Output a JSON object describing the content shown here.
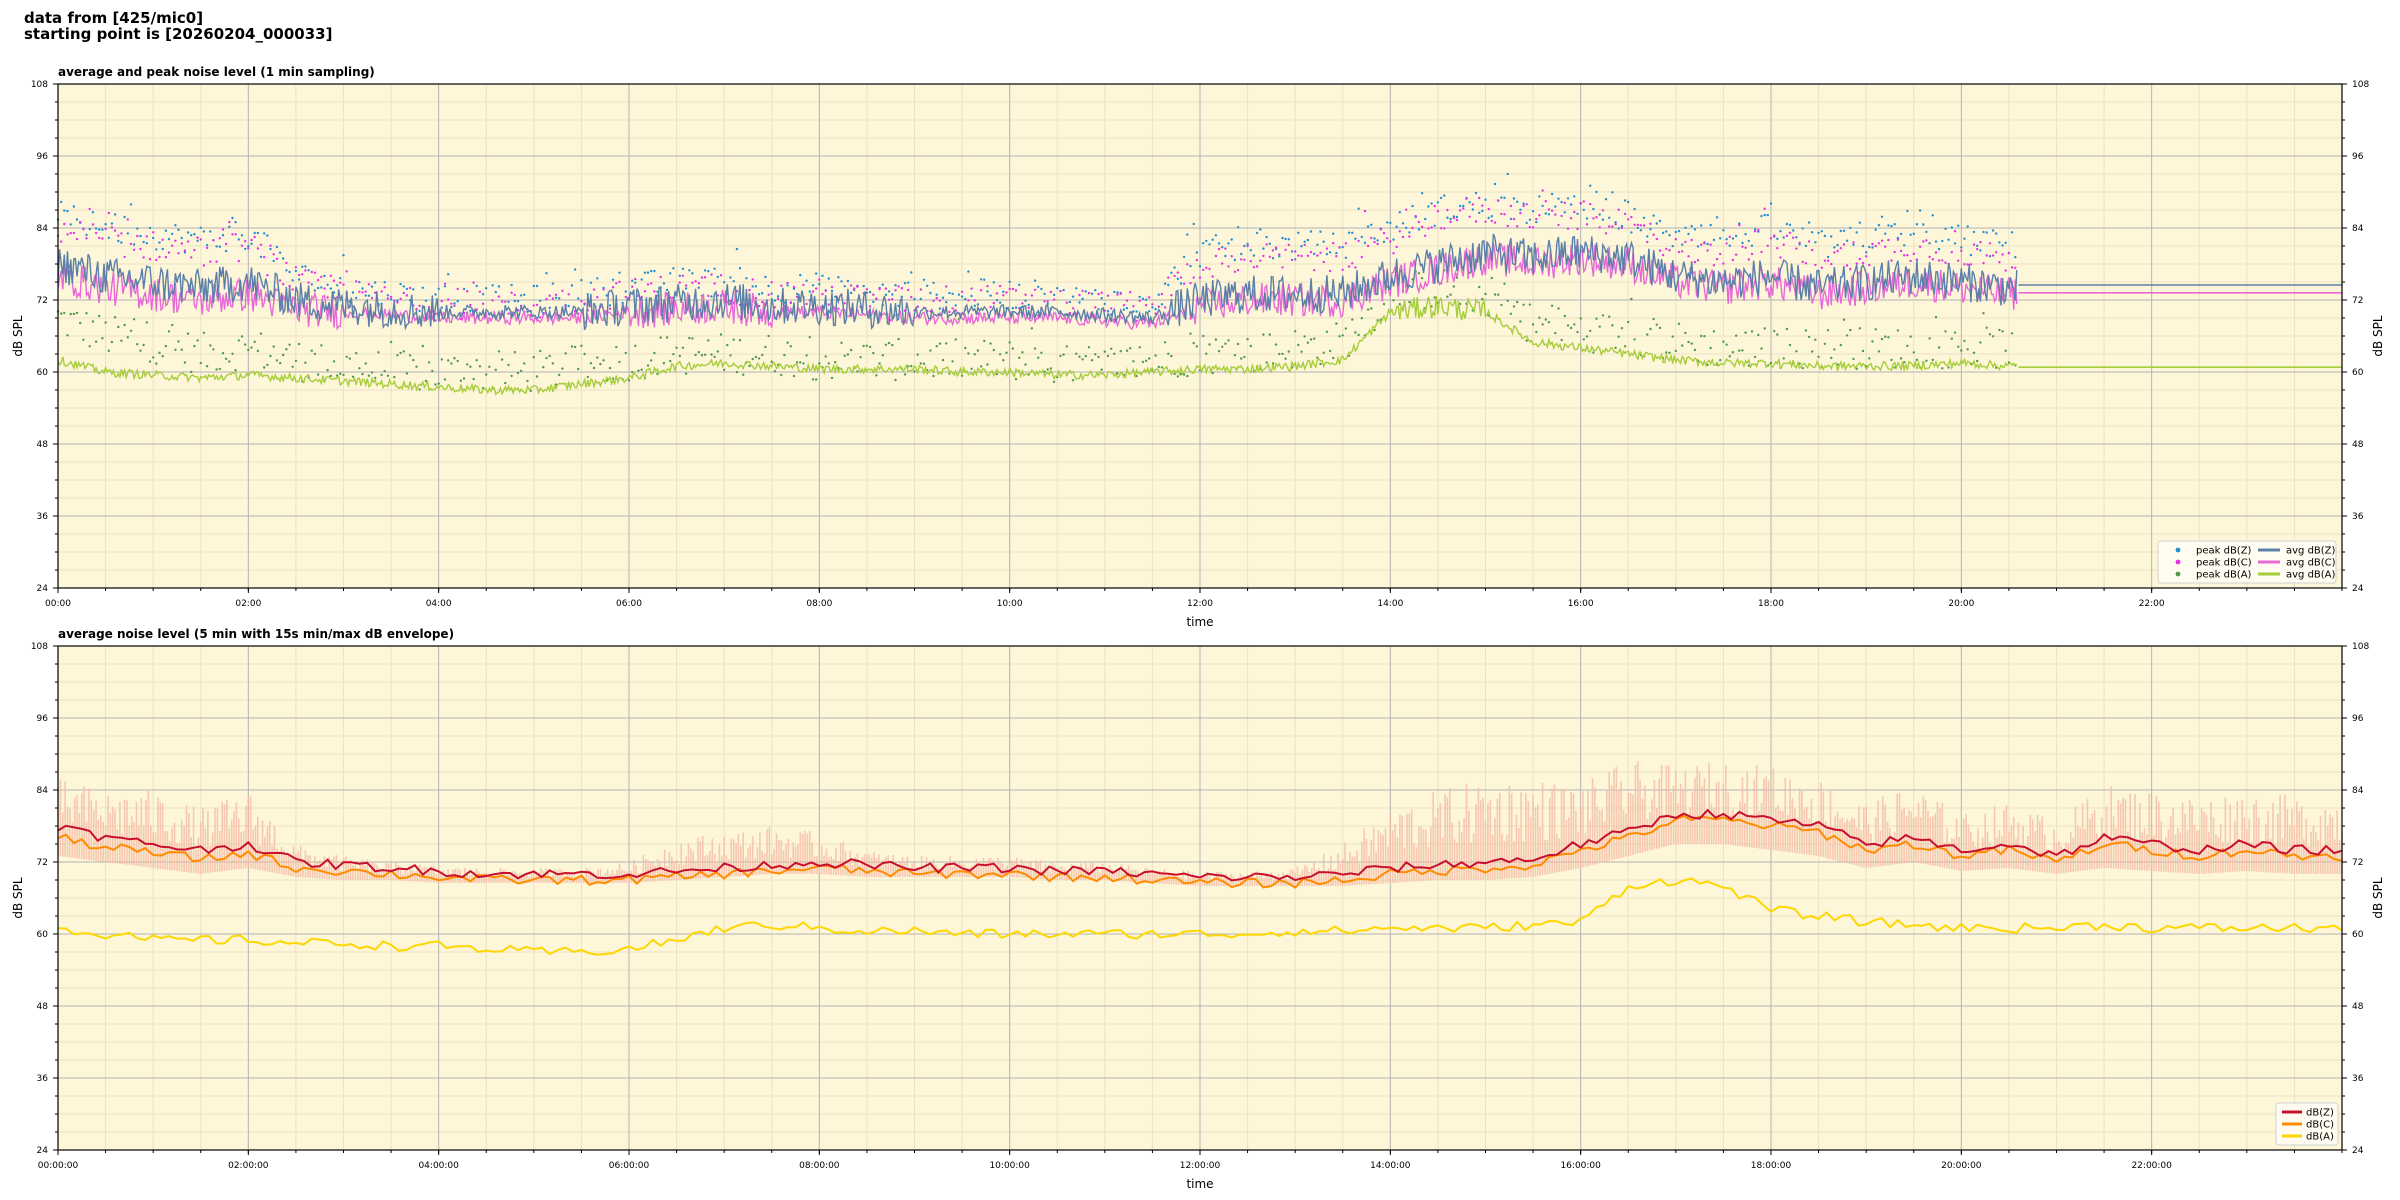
{
  "header": {
    "line1": "data from [425/mic0]",
    "line2": "starting point is [20260204_000033]"
  },
  "colors": {
    "plot_bg": "#fdf6d8",
    "grid_major": "#b3b3b3",
    "grid_minor": "#ece2bf",
    "peak_z": "#1f8fd6",
    "peak_c": "#e830e8",
    "peak_a": "#4f9a48",
    "avg_z": "#5b7fa8",
    "avg_c": "#e868d8",
    "avg_a": "#a6cd3a",
    "env_fill": "#f4b9a4",
    "line_z": "#c8102e",
    "line_c": "#ff8c00",
    "line_a": "#ffd700"
  },
  "chart_data": [
    {
      "type": "line",
      "title": "average and peak noise level (1 min sampling)",
      "xlabel": "time",
      "ylabel": "dB SPL",
      "xlim_hours": [
        0,
        24
      ],
      "ylim": [
        24,
        108
      ],
      "yticks": [
        24,
        36,
        48,
        60,
        72,
        84,
        96,
        108
      ],
      "xticks": [
        "00:00",
        "02:00",
        "04:00",
        "06:00",
        "08:00",
        "10:00",
        "12:00",
        "14:00",
        "16:00",
        "18:00",
        "20:00",
        "22:00"
      ],
      "grid": true,
      "legend_position": "lower-right",
      "legend": [
        "peak dB(Z)",
        "peak dB(C)",
        "peak dB(A)",
        "avg dB(Z)",
        "avg dB(C)",
        "avg dB(A)"
      ],
      "x_hours": [
        0,
        0.5,
        1,
        1.5,
        2,
        2.5,
        3,
        3.5,
        4,
        4.5,
        5,
        5.5,
        6,
        6.5,
        7,
        7.5,
        8,
        8.5,
        9,
        9.5,
        10,
        10.5,
        11,
        11.5,
        12,
        12.5,
        13,
        13.5,
        14,
        14.5,
        15,
        15.5,
        16,
        16.5,
        17,
        17.5,
        18,
        18.5,
        19,
        19.5,
        20,
        20.5
      ],
      "series": [
        {
          "name": "avg dB(Z)",
          "values": [
            78,
            76,
            75,
            74,
            75,
            72,
            71,
            70.5,
            70,
            70,
            70,
            70,
            71,
            71.5,
            72,
            71,
            71,
            70.5,
            70,
            70,
            70,
            70,
            69.5,
            69,
            72,
            73,
            73,
            73,
            76,
            78,
            80,
            79,
            80,
            79,
            76,
            75,
            76,
            74,
            75,
            76,
            75,
            74
          ]
        },
        {
          "name": "avg dB(C)",
          "values": [
            76,
            74,
            73,
            72,
            73,
            70.5,
            70,
            69.5,
            69,
            69,
            69,
            69,
            70,
            70.5,
            71,
            70,
            70,
            69.5,
            69,
            69,
            69,
            69,
            68.5,
            68,
            71,
            72,
            72,
            72,
            75,
            77,
            79,
            78,
            79,
            78,
            75,
            74,
            75,
            73,
            74,
            75,
            74,
            73
          ]
        },
        {
          "name": "avg dB(A)",
          "values": [
            62,
            60,
            59.5,
            59,
            59.5,
            59,
            58.5,
            58,
            57.5,
            57,
            57,
            58,
            59,
            61,
            61.5,
            61,
            60.5,
            60.5,
            60.5,
            60,
            60,
            59.5,
            59.5,
            60,
            60.5,
            60.5,
            61,
            62,
            70,
            71,
            70,
            65,
            64,
            63,
            62,
            61.5,
            61.5,
            61,
            61,
            61,
            61.5,
            61
          ]
        },
        {
          "name": "peak dB(Z)",
          "values": [
            86,
            84,
            83,
            82,
            83,
            76,
            74,
            73,
            72,
            72,
            72,
            73,
            74,
            75,
            75,
            74,
            74,
            73,
            73,
            73,
            73,
            72,
            72,
            72,
            80,
            81,
            81,
            81,
            84,
            87,
            88,
            87,
            87,
            86,
            82,
            82,
            84,
            81,
            82,
            83,
            82,
            81
          ]
        },
        {
          "name": "peak dB(C)",
          "values": [
            84,
            82,
            81,
            80,
            81,
            75,
            73,
            72,
            71,
            71,
            71,
            72,
            73,
            74,
            74,
            73,
            73,
            72,
            72,
            72,
            72,
            71,
            71,
            71,
            78,
            79,
            79,
            79,
            82,
            86,
            87,
            86,
            86,
            85,
            80,
            80,
            82,
            79,
            80,
            81,
            80,
            79
          ]
        },
        {
          "name": "peak dB(A)",
          "values": [
            69,
            66,
            65,
            63,
            64,
            62,
            61,
            60,
            60,
            60,
            60,
            61,
            62,
            63,
            63,
            63,
            62,
            62,
            62,
            62,
            62,
            61,
            61,
            62,
            63,
            63,
            64,
            65,
            73,
            74,
            73,
            68,
            67,
            66,
            65,
            64,
            64,
            64,
            64,
            64,
            64,
            64
          ]
        }
      ],
      "tail": {
        "x_hours": [
          20.6,
          24
        ],
        "avg_z": 74.5,
        "avg_c": 73.2,
        "avg_a": 60.8
      }
    },
    {
      "type": "line",
      "title": "average noise level (5 min with 15s min/max dB envelope)",
      "xlabel": "time",
      "ylabel": "dB SPL",
      "xlim_hours": [
        0,
        24
      ],
      "ylim": [
        24,
        108
      ],
      "yticks": [
        24,
        36,
        48,
        60,
        72,
        84,
        96,
        108
      ],
      "xticks": [
        "00:00:00",
        "02:00:00",
        "04:00:00",
        "06:00:00",
        "08:00:00",
        "10:00:00",
        "12:00:00",
        "14:00:00",
        "16:00:00",
        "18:00:00",
        "20:00:00",
        "22:00:00"
      ],
      "grid": true,
      "legend_position": "lower-right",
      "legend": [
        "dB(Z)",
        "dB(C)",
        "dB(A)"
      ],
      "x_hours": [
        0,
        0.5,
        1,
        1.5,
        2,
        2.5,
        3,
        3.5,
        4,
        4.5,
        5,
        5.5,
        6,
        6.5,
        7,
        7.5,
        8,
        8.5,
        9,
        9.5,
        10,
        10.5,
        11,
        11.5,
        12,
        12.5,
        13,
        13.5,
        14,
        14.5,
        15,
        15.5,
        16,
        16.5,
        17,
        17.5,
        18,
        18.5,
        19,
        19.5,
        20,
        20.5,
        21,
        21.5,
        22,
        22.5,
        23,
        23.5,
        24
      ],
      "series": [
        {
          "name": "dB(Z)",
          "values": [
            78,
            76,
            75,
            74,
            75,
            72,
            71.5,
            71,
            70.5,
            70,
            70,
            70,
            70,
            70.5,
            71,
            71.5,
            72,
            71.5,
            71,
            71,
            71,
            70.5,
            70.5,
            70,
            69.5,
            69.5,
            69.5,
            70,
            71,
            71.5,
            72,
            72.5,
            75,
            77,
            80,
            80,
            79,
            78,
            75,
            76,
            74,
            75,
            73,
            76,
            75,
            74,
            75,
            74,
            74
          ]
        },
        {
          "name": "dB(C)",
          "values": [
            76,
            74.5,
            73.5,
            72.5,
            73.5,
            71,
            70.5,
            70,
            69.5,
            69,
            69,
            69,
            69,
            69.5,
            70,
            70.5,
            71,
            70.5,
            70,
            70,
            70,
            69.5,
            69.5,
            69,
            68.5,
            68.5,
            68.5,
            69,
            70,
            70.5,
            71,
            71.5,
            74,
            76,
            79,
            79,
            78,
            77,
            74,
            75,
            73,
            74,
            72,
            75,
            74,
            73,
            74,
            73,
            73
          ]
        },
        {
          "name": "dB(A)",
          "values": [
            61,
            60,
            59,
            59,
            59,
            58.5,
            58.5,
            58,
            58,
            57.5,
            57,
            57,
            57.5,
            59,
            61,
            61.5,
            61,
            60.5,
            60.5,
            60,
            60,
            60,
            60,
            60,
            60,
            60,
            60.5,
            60.5,
            61,
            61,
            61,
            61.5,
            62,
            68,
            69,
            68,
            64,
            63,
            62,
            61.5,
            61,
            61,
            61,
            61.5,
            61,
            61,
            61,
            61,
            61
          ]
        }
      ],
      "envelope_max": [
        86,
        84,
        84,
        81,
        84,
        75,
        73,
        72,
        71.5,
        71,
        71,
        71,
        72,
        76,
        77,
        78,
        77,
        74,
        73,
        73,
        73,
        72,
        72,
        71,
        70.5,
        70.5,
        71,
        75,
        81,
        84,
        86,
        86,
        85,
        89,
        88,
        89,
        88,
        86,
        82,
        85,
        80,
        82,
        79,
        85,
        84,
        83,
        84,
        83,
        83
      ],
      "envelope_min": [
        73,
        72,
        71,
        70,
        71,
        69.5,
        69,
        69,
        68.5,
        68.5,
        68.5,
        68.5,
        68.5,
        69,
        69.5,
        70,
        70,
        69.5,
        69.5,
        69.5,
        69.5,
        69,
        69,
        68.5,
        68,
        68,
        68,
        68,
        68.5,
        69,
        69,
        69.5,
        71,
        73,
        75,
        75,
        74,
        73,
        71,
        72,
        70.5,
        71,
        70,
        71,
        70.5,
        70,
        70.5,
        70,
        70
      ]
    }
  ]
}
